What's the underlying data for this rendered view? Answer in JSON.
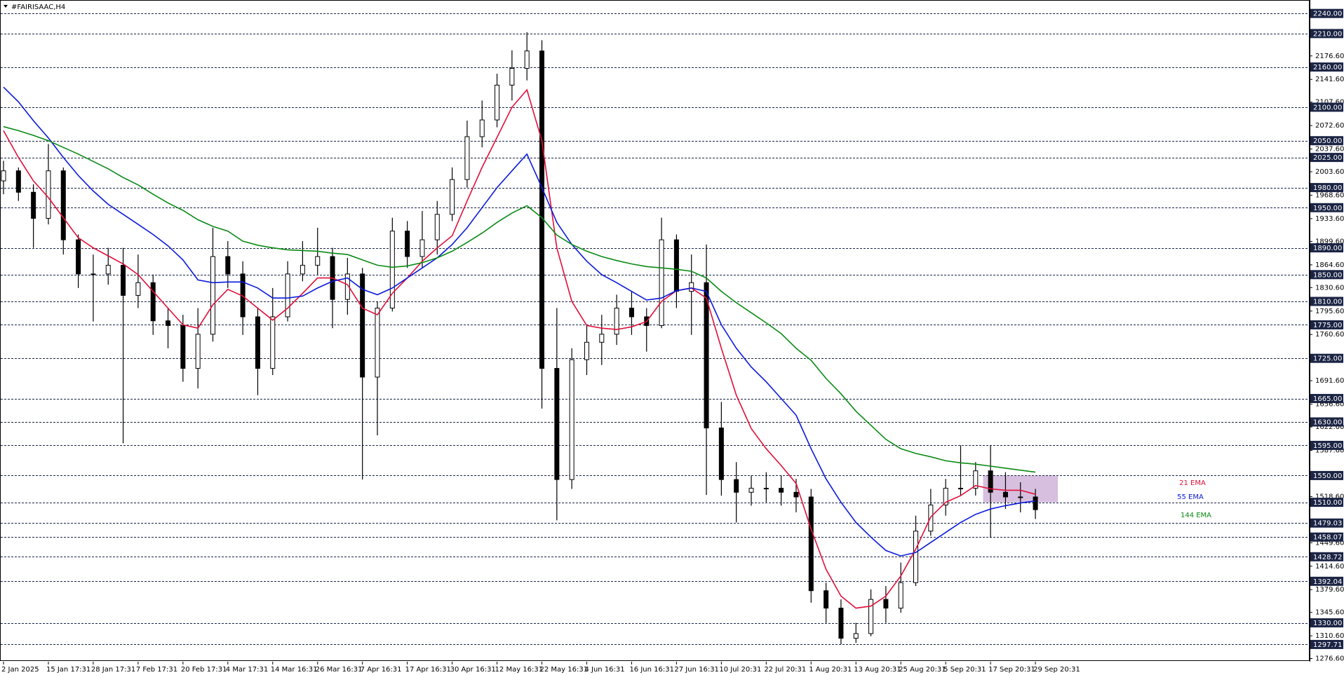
{
  "chart_data": {
    "type": "candlestick",
    "title": "#FAIRISAAC,H4",
    "categories": [
      "2 Jan 2025",
      null,
      null,
      "15 Jan 17:31",
      null,
      null,
      "28 Jan 17:31",
      null,
      null,
      "7 Feb 17:31",
      null,
      null,
      "20 Feb 17:31",
      null,
      null,
      "4 Mar 17:31",
      null,
      null,
      "14 Mar 16:31",
      null,
      null,
      "26 Mar 16:31",
      null,
      null,
      "7 Apr 16:31",
      null,
      null,
      "17 Apr 16:31",
      null,
      null,
      "30 Apr 16:31",
      null,
      null,
      "12 May 16:31",
      null,
      null,
      "22 May 16:31",
      null,
      null,
      "4 Jun 16:31",
      null,
      null,
      "16 Jun 16:31",
      null,
      null,
      "27 Jun 16:31",
      null,
      null,
      "10 Jul 20:31",
      null,
      null,
      "22 Jul 20:31",
      null,
      null,
      "1 Aug 20:31",
      null,
      null,
      "13 Aug 20:31",
      null,
      null,
      "25 Aug 20:31",
      null,
      null,
      "5 Sep 20:31",
      null,
      null,
      "17 Sep 20:31",
      null,
      null,
      "29 Sep 20:31"
    ],
    "ohlc": {
      "open": [
        1990,
        2005,
        1973,
        1934,
        2005,
        1902,
        1851,
        1851,
        1864,
        1819,
        1838,
        1781,
        1774,
        1710,
        1761,
        1877,
        1851,
        1787,
        1710,
        1787,
        1851,
        1864,
        1877,
        1813,
        1851,
        1697,
        1800,
        1915,
        1877,
        1902,
        1940,
        1992,
        2056,
        2081,
        2133,
        2158,
        2184,
        1710,
        1544,
        1723,
        1749,
        1761,
        1800,
        1787,
        1774,
        1902,
        1825,
        1838,
        1621,
        1544,
        1525,
        1531,
        1531,
        1525,
        1518,
        1378,
        1352,
        1307,
        1314,
        1365,
        1352,
        1390,
        1467,
        1506,
        1531,
        1531,
        1557,
        1525,
        1518,
        1518
      ],
      "high": [
        2020,
        2010,
        1985,
        2045,
        2010,
        1910,
        1880,
        1890,
        1890,
        1880,
        1850,
        1800,
        1790,
        1800,
        1920,
        1900,
        1870,
        1800,
        1830,
        1870,
        1900,
        1920,
        1890,
        1875,
        1860,
        1810,
        1935,
        1930,
        1945,
        1960,
        2010,
        2080,
        2110,
        2150,
        2185,
        2212,
        2200,
        1800,
        1740,
        1775,
        1790,
        1820,
        1825,
        1800,
        1935,
        1910,
        1880,
        1895,
        1660,
        1570,
        1550,
        1555,
        1550,
        1545,
        1530,
        1390,
        1365,
        1330,
        1380,
        1385,
        1420,
        1490,
        1530,
        1545,
        1595,
        1570,
        1595,
        1555,
        1540,
        1530
      ],
      "low": [
        1970,
        1960,
        1890,
        1925,
        1880,
        1830,
        1780,
        1835,
        1598,
        1800,
        1760,
        1740,
        1690,
        1680,
        1750,
        1830,
        1760,
        1670,
        1700,
        1780,
        1840,
        1850,
        1770,
        1790,
        1544,
        1610,
        1795,
        1860,
        1860,
        1880,
        1930,
        1980,
        2040,
        2070,
        2110,
        2140,
        1650,
        1483,
        1530,
        1700,
        1715,
        1745,
        1760,
        1735,
        1770,
        1800,
        1760,
        1521,
        1520,
        1480,
        1505,
        1510,
        1505,
        1495,
        1360,
        1330,
        1298,
        1300,
        1310,
        1330,
        1345,
        1385,
        1460,
        1490,
        1520,
        1520,
        1457,
        1500,
        1495,
        1485
      ],
      "close": [
        2005,
        1973,
        1934,
        2005,
        1902,
        1851,
        1851,
        1864,
        1819,
        1838,
        1781,
        1774,
        1710,
        1761,
        1877,
        1851,
        1787,
        1710,
        1787,
        1851,
        1864,
        1877,
        1813,
        1851,
        1697,
        1800,
        1915,
        1877,
        1902,
        1940,
        1992,
        2056,
        2081,
        2133,
        2158,
        2184,
        1710,
        1544,
        1723,
        1749,
        1761,
        1800,
        1787,
        1774,
        1902,
        1825,
        1838,
        1621,
        1544,
        1525,
        1531,
        1531,
        1525,
        1518,
        1378,
        1352,
        1307,
        1314,
        1365,
        1352,
        1390,
        1467,
        1506,
        1531,
        1531,
        1557,
        1525,
        1518,
        1518,
        1499
      ]
    },
    "bull_color": "#ffffff",
    "bear_color": "#000000",
    "lines": [
      {
        "name": "21 EMA",
        "color": "#e0103a",
        "values": [
          2065,
          2025,
          1990,
          1965,
          1935,
          1905,
          1890,
          1878,
          1866,
          1850,
          1825,
          1800,
          1775,
          1770,
          1805,
          1828,
          1818,
          1800,
          1782,
          1800,
          1822,
          1845,
          1845,
          1835,
          1800,
          1790,
          1822,
          1845,
          1870,
          1890,
          1908,
          1960,
          2010,
          2055,
          2100,
          2126,
          2050,
          1890,
          1810,
          1774,
          1770,
          1768,
          1772,
          1780,
          1810,
          1826,
          1830,
          1815,
          1740,
          1670,
          1620,
          1590,
          1565,
          1538,
          1470,
          1410,
          1370,
          1352,
          1355,
          1370,
          1400,
          1440,
          1488,
          1510,
          1520,
          1535,
          1530,
          1528,
          1528,
          1522
        ]
      },
      {
        "name": "55 EMA",
        "color": "#0a1adc",
        "values": [
          2130,
          2108,
          2080,
          2054,
          2025,
          1998,
          1975,
          1955,
          1940,
          1925,
          1910,
          1893,
          1872,
          1842,
          1838,
          1839,
          1839,
          1830,
          1815,
          1815,
          1818,
          1830,
          1840,
          1845,
          1828,
          1820,
          1830,
          1845,
          1860,
          1875,
          1895,
          1920,
          1950,
          1980,
          2005,
          2030,
          1980,
          1928,
          1895,
          1870,
          1850,
          1838,
          1825,
          1812,
          1815,
          1826,
          1830,
          1825,
          1775,
          1740,
          1712,
          1690,
          1665,
          1640,
          1590,
          1545,
          1510,
          1480,
          1458,
          1438,
          1430,
          1435,
          1450,
          1465,
          1480,
          1492,
          1500,
          1505,
          1509,
          1512
        ]
      },
      {
        "name": "144 EMA",
        "color": "#0a8a14",
        "values": [
          2071,
          2065,
          2058,
          2050,
          2040,
          2030,
          2019,
          2008,
          1995,
          1984,
          1970,
          1957,
          1946,
          1932,
          1922,
          1915,
          1900,
          1894,
          1890,
          1887,
          1886,
          1885,
          1882,
          1880,
          1872,
          1864,
          1861,
          1863,
          1868,
          1875,
          1885,
          1898,
          1912,
          1928,
          1942,
          1953,
          1935,
          1909,
          1895,
          1885,
          1877,
          1871,
          1866,
          1862,
          1860,
          1858,
          1855,
          1845,
          1825,
          1808,
          1793,
          1778,
          1762,
          1740,
          1722,
          1695,
          1672,
          1646,
          1625,
          1604,
          1590,
          1583,
          1578,
          1572,
          1569,
          1567,
          1564,
          1561,
          1558,
          1555
        ]
      }
    ],
    "zone": {
      "low": 1510,
      "high": 1550,
      "start": 66,
      "color": "#c9a9d4"
    },
    "ylim": [
      1272,
      2258
    ],
    "yticks": [
      {
        "value": 2176.6,
        "label": "2176.60"
      },
      {
        "value": 2141.6,
        "label": "2141.60"
      },
      {
        "value": 2107.6,
        "label": "2107.60"
      },
      {
        "value": 2072.6,
        "label": "2072.60"
      },
      {
        "value": 2037.6,
        "label": "2037.60"
      },
      {
        "value": 2003.6,
        "label": "2003.60"
      },
      {
        "value": 1968.6,
        "label": "1968.60"
      },
      {
        "value": 1933.6,
        "label": "1933.60"
      },
      {
        "value": 1899.6,
        "label": "1899.60"
      },
      {
        "value": 1864.6,
        "label": "1864.60"
      },
      {
        "value": 1830.6,
        "label": "1830.60"
      },
      {
        "value": 1795.6,
        "label": "1795.60"
      },
      {
        "value": 1760.6,
        "label": "1760.60"
      },
      {
        "value": 1691.6,
        "label": "1691.60"
      },
      {
        "value": 1656.6,
        "label": "1656.60"
      },
      {
        "value": 1622.6,
        "label": "1622.60"
      },
      {
        "value": 1587.6,
        "label": "1587.60"
      },
      {
        "value": 1518.6,
        "label": "1518.60"
      },
      {
        "value": 1449.6,
        "label": "1449.60"
      },
      {
        "value": 1414.6,
        "label": "1414.60"
      },
      {
        "value": 1379.6,
        "label": "1379.60"
      },
      {
        "value": 1345.6,
        "label": "1345.60"
      },
      {
        "value": 1310.6,
        "label": "1310.60"
      },
      {
        "value": 1276.6,
        "label": "1276.60"
      }
    ],
    "levels": [
      {
        "value": 2240,
        "label": "2240.00"
      },
      {
        "value": 2210,
        "label": "2210.00"
      },
      {
        "value": 2160,
        "label": "2160.00"
      },
      {
        "value": 2100,
        "label": "2100.00"
      },
      {
        "value": 2050,
        "label": "2050.00"
      },
      {
        "value": 2025,
        "label": "2025.00"
      },
      {
        "value": 1980,
        "label": "1980.00"
      },
      {
        "value": 1950,
        "label": "1950.00"
      },
      {
        "value": 1890,
        "label": "1890.00"
      },
      {
        "value": 1850,
        "label": "1850.00"
      },
      {
        "value": 1810,
        "label": "1810.00"
      },
      {
        "value": 1775,
        "label": "1775.00"
      },
      {
        "value": 1725,
        "label": "1725.00"
      },
      {
        "value": 1665,
        "label": "1665.00"
      },
      {
        "value": 1630,
        "label": "1630.00"
      },
      {
        "value": 1595,
        "label": "1595.00"
      },
      {
        "value": 1550,
        "label": "1550.00"
      },
      {
        "value": 1510,
        "label": "1510.00"
      },
      {
        "value": 1479.03,
        "label": "1479.03"
      },
      {
        "value": 1458.07,
        "label": "1458.07"
      },
      {
        "value": 1428.72,
        "label": "1428.72"
      },
      {
        "value": 1392.04,
        "label": "1392.04"
      },
      {
        "value": 1330,
        "label": "1330.00"
      },
      {
        "value": 1297.71,
        "label": "1297.71"
      }
    ],
    "level_color": "#1b2444"
  }
}
